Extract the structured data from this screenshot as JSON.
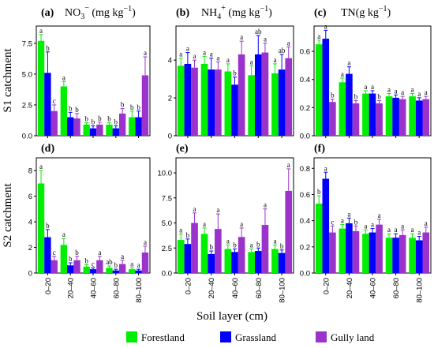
{
  "figure": {
    "xlabel": "Soil layer (cm)",
    "row_labels": [
      "S1 catchment",
      "S2 catchment"
    ],
    "panel_titles": [
      {
        "letter": "(a)",
        "main": "NO",
        "sub": "3",
        "sup": "−",
        "unit": " (mg kg",
        "unit_sup": "−1",
        "close": ")"
      },
      {
        "letter": "(b)",
        "main": "NH",
        "sub": "4",
        "sup": "+",
        "unit": " (mg kg",
        "unit_sup": "−1",
        "close": ")"
      },
      {
        "letter": "(c)",
        "main": "TN(g kg",
        "sub": "",
        "sup": "−1",
        "unit": "",
        "unit_sup": "",
        "close": ")"
      },
      {
        "letter": "(d)"
      },
      {
        "letter": "(e)"
      },
      {
        "letter": "(f)"
      }
    ],
    "legend": [
      {
        "name": "Forestland",
        "color": "#00ee00"
      },
      {
        "name": "Grassland",
        "color": "#0000ff"
      },
      {
        "name": "Gully land",
        "color": "#9933cc"
      }
    ]
  },
  "chart_data": [
    {
      "type": "bar",
      "panel": "(a)",
      "categories": [
        "0–20",
        "20–40",
        "40–60",
        "60–80",
        "80–100"
      ],
      "ylim": [
        0,
        8.9
      ],
      "yticks": [
        0,
        2.5,
        5.0,
        7.5
      ],
      "ytick_labels": [
        "0.0",
        "2.5",
        "5.0",
        "7.5"
      ],
      "series": [
        {
          "name": "Forestland",
          "values": [
            7.7,
            4.0,
            0.9,
            0.9,
            1.5
          ],
          "errors": [
            0.5,
            0.4,
            0.15,
            0.15,
            0.5
          ],
          "labels": [
            "a",
            "a",
            "b",
            "b",
            "b"
          ]
        },
        {
          "name": "Grassland",
          "values": [
            5.1,
            1.5,
            0.6,
            0.6,
            1.5
          ],
          "errors": [
            1.7,
            0.4,
            0.2,
            0.2,
            0.5
          ],
          "labels": [
            "b",
            "b",
            "b",
            "b",
            "b"
          ]
        },
        {
          "name": "Gully land",
          "values": [
            2.0,
            1.4,
            0.9,
            1.8,
            4.9
          ],
          "errors": [
            0.5,
            0.4,
            0.2,
            0.4,
            1.5
          ],
          "labels": [
            "c",
            "b",
            "b",
            "b",
            "a"
          ]
        }
      ]
    },
    {
      "type": "bar",
      "panel": "(b)",
      "categories": [
        "0–20",
        "20–40",
        "40–60",
        "60–80",
        "80–100"
      ],
      "ylim": [
        0,
        5.8
      ],
      "yticks": [
        0,
        2,
        4
      ],
      "ytick_labels": [
        "0",
        "2",
        "4"
      ],
      "series": [
        {
          "name": "Forestland",
          "values": [
            3.7,
            3.8,
            3.4,
            3.2,
            3.3
          ],
          "errors": [
            0.4,
            0.4,
            0.4,
            0.5,
            0.5
          ],
          "labels": [
            "a",
            "a",
            "a",
            "a",
            "a"
          ]
        },
        {
          "name": "Grassland",
          "values": [
            3.8,
            3.5,
            2.7,
            4.3,
            3.5
          ],
          "errors": [
            0.6,
            0.6,
            0.4,
            1.0,
            0.8
          ],
          "labels": [
            "a",
            "a",
            "b",
            "ab",
            "ab"
          ]
        },
        {
          "name": "Gully land",
          "values": [
            3.6,
            3.5,
            4.3,
            4.4,
            4.1
          ],
          "errors": [
            0.4,
            0.4,
            0.7,
            0.5,
            0.6
          ],
          "labels": [
            "a",
            "a",
            "a",
            "a",
            "a"
          ]
        }
      ]
    },
    {
      "type": "bar",
      "panel": "(c)",
      "categories": [
        "0–20",
        "20–40",
        "40–60",
        "60–80",
        "80–100"
      ],
      "ylim": [
        0,
        0.78
      ],
      "yticks": [
        0,
        0.2,
        0.4,
        0.6
      ],
      "ytick_labels": [
        "0.0",
        "0.2",
        "0.4",
        "0.6"
      ],
      "series": [
        {
          "name": "Forestland",
          "values": [
            0.65,
            0.38,
            0.3,
            0.28,
            0.28
          ],
          "errors": [
            0.03,
            0.03,
            0.02,
            0.02,
            0.02
          ],
          "labels": [
            "a",
            "a",
            "a",
            "a",
            "a"
          ]
        },
        {
          "name": "Grassland",
          "values": [
            0.69,
            0.44,
            0.3,
            0.27,
            0.25
          ],
          "errors": [
            0.06,
            0.05,
            0.02,
            0.02,
            0.02
          ],
          "labels": [
            "a",
            "a",
            "a",
            "a",
            "a"
          ]
        },
        {
          "name": "Gully land",
          "values": [
            0.24,
            0.23,
            0.23,
            0.26,
            0.26
          ],
          "errors": [
            0.02,
            0.02,
            0.02,
            0.02,
            0.02
          ],
          "labels": [
            "b",
            "b",
            "b",
            "a",
            "a"
          ]
        }
      ]
    },
    {
      "type": "bar",
      "panel": "(d)",
      "categories": [
        "0–20",
        "20–40",
        "40–60",
        "60–80",
        "80–100"
      ],
      "ylim": [
        0,
        9.0
      ],
      "yticks": [
        0,
        2,
        4,
        6,
        8
      ],
      "ytick_labels": [
        "0",
        "2",
        "4",
        "6",
        "8"
      ],
      "series": [
        {
          "name": "Forestland",
          "values": [
            7.0,
            2.2,
            0.5,
            0.4,
            0.3
          ],
          "errors": [
            1.0,
            0.5,
            0.15,
            0.15,
            0.1
          ],
          "labels": [
            "a",
            "a",
            "b",
            "ab",
            "a"
          ]
        },
        {
          "name": "Grassland",
          "values": [
            2.8,
            0.6,
            0.3,
            0.2,
            0.2
          ],
          "errors": [
            0.6,
            0.2,
            0.1,
            0.1,
            0.1
          ],
          "labels": [
            "b",
            "b",
            "c",
            "b",
            "a"
          ]
        },
        {
          "name": "Gully land",
          "values": [
            1.0,
            1.0,
            1.0,
            0.7,
            1.6
          ],
          "errors": [
            0.3,
            0.3,
            0.3,
            0.3,
            0.5
          ],
          "labels": [
            "c",
            "b",
            "a",
            "a",
            "a"
          ]
        }
      ]
    },
    {
      "type": "bar",
      "panel": "(e)",
      "categories": [
        "0–20",
        "20–40",
        "40–60",
        "60–80",
        "80–100"
      ],
      "ylim": [
        0,
        11.5
      ],
      "yticks": [
        0,
        2.5,
        5.0,
        7.5,
        10.0
      ],
      "ytick_labels": [
        "0.0",
        "2.5",
        "5.0",
        "7.5",
        "10.0"
      ],
      "series": [
        {
          "name": "Forestland",
          "values": [
            3.3,
            3.9,
            2.4,
            2.1,
            2.4
          ],
          "errors": [
            0.6,
            0.6,
            0.4,
            0.3,
            0.4
          ],
          "labels": [
            "a",
            "a",
            "a",
            "a",
            "a"
          ]
        },
        {
          "name": "Grassland",
          "values": [
            2.9,
            1.9,
            2.1,
            2.2,
            2.0
          ],
          "errors": [
            0.5,
            0.3,
            0.3,
            0.3,
            0.3
          ],
          "labels": [
            "b",
            "b",
            "b",
            "b",
            "b"
          ]
        },
        {
          "name": "Gully land",
          "values": [
            5.0,
            4.4,
            3.6,
            4.8,
            8.2
          ],
          "errors": [
            1.0,
            1.5,
            0.9,
            1.6,
            2.2
          ],
          "labels": [
            "a",
            "a",
            "a",
            "a",
            "a"
          ]
        }
      ]
    },
    {
      "type": "bar",
      "panel": "(f)",
      "categories": [
        "0–20",
        "20–40",
        "40–60",
        "60–80",
        "80–100"
      ],
      "ylim": [
        0,
        0.88
      ],
      "yticks": [
        0,
        0.2,
        0.4,
        0.6,
        0.8
      ],
      "ytick_labels": [
        "0.0",
        "0.2",
        "0.4",
        "0.6",
        "0.8"
      ],
      "series": [
        {
          "name": "Forestland",
          "values": [
            0.53,
            0.34,
            0.3,
            0.27,
            0.27
          ],
          "errors": [
            0.06,
            0.03,
            0.03,
            0.03,
            0.03
          ],
          "labels": [
            "b",
            "a",
            "a",
            "a",
            "a"
          ]
        },
        {
          "name": "Grassland",
          "values": [
            0.72,
            0.38,
            0.31,
            0.27,
            0.25
          ],
          "errors": [
            0.05,
            0.04,
            0.03,
            0.03,
            0.03
          ],
          "labels": [
            "a",
            "a",
            "a",
            "a",
            "a"
          ]
        },
        {
          "name": "Gully land",
          "values": [
            0.31,
            0.32,
            0.37,
            0.29,
            0.31
          ],
          "errors": [
            0.05,
            0.04,
            0.04,
            0.04,
            0.04
          ],
          "labels": [
            "c",
            "b",
            "a",
            "a",
            "a"
          ]
        }
      ]
    }
  ]
}
